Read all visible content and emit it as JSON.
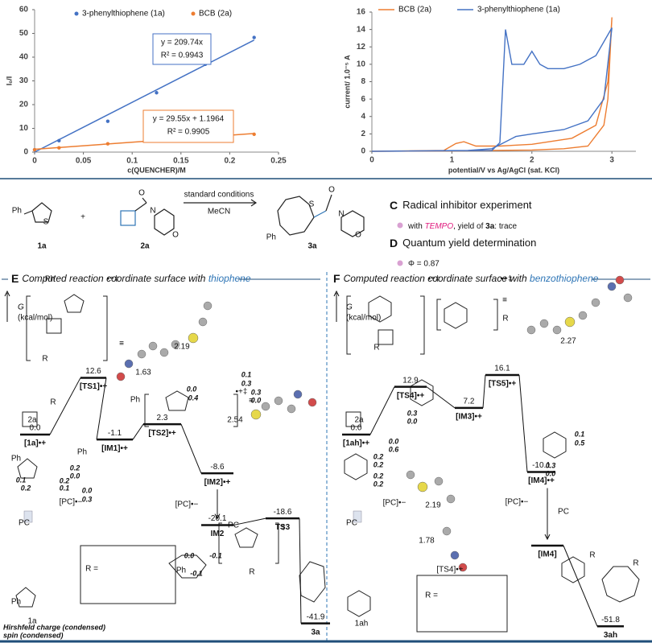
{
  "chart_data": [
    {
      "type": "scatter",
      "x_label": "c(QUENCHER)/M",
      "y_label": "I₀/I",
      "xlim": [
        0,
        0.25
      ],
      "xticks": [
        0,
        0.05,
        0.1,
        0.15,
        0.2,
        0.25
      ],
      "ylim": [
        0,
        60
      ],
      "yticks": [
        0,
        10,
        20,
        30,
        40,
        50,
        60
      ],
      "grid": false,
      "legend": "top",
      "x": [
        0,
        0.025,
        0.075,
        0.125,
        0.175,
        0.225
      ],
      "series": [
        {
          "name": "3-phenylthiophene (1a)",
          "color": "#4472c4",
          "values": [
            1,
            4.8,
            13,
            25,
            37,
            48.3
          ],
          "trendline": {
            "slope": 209.74,
            "intercept": 0
          },
          "annotations": [
            "y = 209.74x",
            "R² = 0.9943"
          ]
        },
        {
          "name": "BCB (2a)",
          "color": "#ed7d31",
          "values": [
            1,
            1.8,
            3.5,
            4.8,
            6,
            7.5
          ],
          "trendline": {
            "slope": 29.55,
            "intercept": 1.1964
          },
          "annotations": [
            "y = 29.55x + 1.1964",
            "R² = 0.9905"
          ]
        }
      ]
    },
    {
      "type": "line",
      "x_label": "potential/V vs Ag/AgCl (sat. KCl)",
      "y_label": "current/ 1.0⁻⁵ A",
      "xlim": [
        0,
        3.3
      ],
      "xticks": [
        0,
        1,
        2,
        3
      ],
      "ylim": [
        0,
        16
      ],
      "yticks": [
        0,
        2,
        4,
        6,
        8,
        10,
        12,
        14,
        16
      ],
      "grid": false,
      "legend": "top",
      "series": [
        {
          "name": "BCB (2a)",
          "color": "#ed7d31",
          "x": [
            0,
            0.9,
            1.05,
            1.15,
            1.3,
            1.6,
            2.0,
            2.5,
            2.8,
            2.95,
            3.0,
            2.95,
            2.9,
            2.7,
            2.4,
            2.0,
            1.5,
            1.0,
            0
          ],
          "values": [
            0,
            0.1,
            0.9,
            1.1,
            0.6,
            0.6,
            0.8,
            1.5,
            3,
            8,
            15.4,
            6,
            3,
            0.6,
            0.3,
            0.15,
            0.1,
            0.05,
            0
          ]
        },
        {
          "name": "3-phenylthiophene (1a)",
          "color": "#4472c4",
          "x": [
            0,
            1.5,
            1.6,
            1.67,
            1.75,
            1.9,
            2.0,
            2.1,
            2.2,
            2.4,
            2.6,
            2.8,
            3.0,
            2.9,
            2.7,
            2.4,
            2.0,
            1.8,
            1.65,
            1.5,
            1.2,
            0
          ],
          "values": [
            0,
            0.1,
            1,
            14,
            10,
            10,
            11.5,
            10,
            9.5,
            9.5,
            10,
            11,
            14.2,
            6,
            3.5,
            2.5,
            2,
            1.7,
            1,
            0.3,
            0.1,
            0
          ]
        }
      ]
    }
  ],
  "scheme": {
    "reagents": [
      "Ph",
      "1a",
      "+",
      "2a",
      "standard conditions",
      "MeCN",
      "Ph",
      "3a"
    ],
    "atoms": [
      "S",
      "O",
      "N",
      "O",
      "S",
      "O",
      "N",
      "O"
    ],
    "c_letter": "C",
    "c_title": "Radical inhibitor experiment",
    "c_line": [
      "with ",
      "TEMPO",
      ", yield of ",
      "3a",
      ": trace"
    ],
    "d_letter": "D",
    "d_title": "Quantum yield determination",
    "d_line": "Φ = 0.87"
  },
  "panels": [
    {
      "letter": "E",
      "title": "Computed reaction coordinate surface with ",
      "title_em": "thiophene",
      "axis": "G",
      "axis_unit": "(kcal/mol)",
      "levels": {
        "labels": [
          "[1a]•+",
          "[TS1]•+",
          "[IM1]•+",
          "[TS2]•+",
          "[IM2]•+",
          "IM2",
          "TS3",
          "3a"
        ],
        "values": [
          0,
          12.6,
          -1.1,
          2.3,
          -8.6,
          -20.1,
          -18.6,
          -41.9
        ],
        "value_labels": [
          "0.0",
          "12.6",
          "-1.1",
          "2.3",
          "-8.6",
          "-20.1",
          "-18.6",
          "-41.9"
        ]
      },
      "notes": [
        "2.19",
        "1.63",
        "2.54",
        "≡",
        "≡",
        "•+‡",
        "•+‡",
        "‡",
        "R",
        "2a",
        "[PC]•−",
        "PC",
        "R =",
        "Ph",
        "Ph",
        "Ph",
        "1a",
        "[PC]•−",
        "PC",
        "Ph",
        "Ph",
        "R",
        "Ph",
        "R"
      ],
      "charges": [
        "0.1",
        "0.0",
        "0.3",
        "0.1",
        "0.2",
        "0.2",
        "0.0",
        "0.0",
        "-0.1",
        "-0.1"
      ],
      "spins": [
        "0.3",
        "0.4",
        "0.0",
        "0.2",
        "0.1",
        "0.0",
        "0.3"
      ],
      "legend": [
        "Hirshfeld charge (condensed)",
        "spin (condensed)"
      ]
    },
    {
      "letter": "F",
      "title": "Computed reaction coordinate surface with ",
      "title_em": "benzothiophene",
      "axis": "G",
      "axis_unit": "(kcal/mol)",
      "levels": {
        "labels": [
          "[1ah]•+",
          "[TS4]•+",
          "[IM3]•+",
          "[TS5]•+",
          "[IM4]•+",
          "[IM4]",
          "3ah"
        ],
        "values": [
          0,
          12.9,
          7.2,
          16.1,
          -10.1,
          null,
          -51.8
        ],
        "value_labels": [
          "0.0",
          "12.9",
          "7.2",
          "16.1",
          "-10.1",
          null,
          "-51.8"
        ]
      },
      "notes": [
        "2.27",
        "2.19",
        "1.78",
        "≡",
        "•+‡",
        "•+‡",
        "R",
        "R",
        "2a",
        "[PC]•−",
        "PC",
        "[PC]•−",
        "PC",
        "R =",
        "1ah",
        "[TS4]•+",
        "R",
        "R"
      ],
      "charges": [
        "0.2",
        "0.2",
        "0.3",
        "0.0",
        "0.1",
        "0.3"
      ],
      "spins": [
        "0.2",
        "0.2",
        "0.0",
        "0.6",
        "0.5",
        "0.0"
      ]
    }
  ]
}
